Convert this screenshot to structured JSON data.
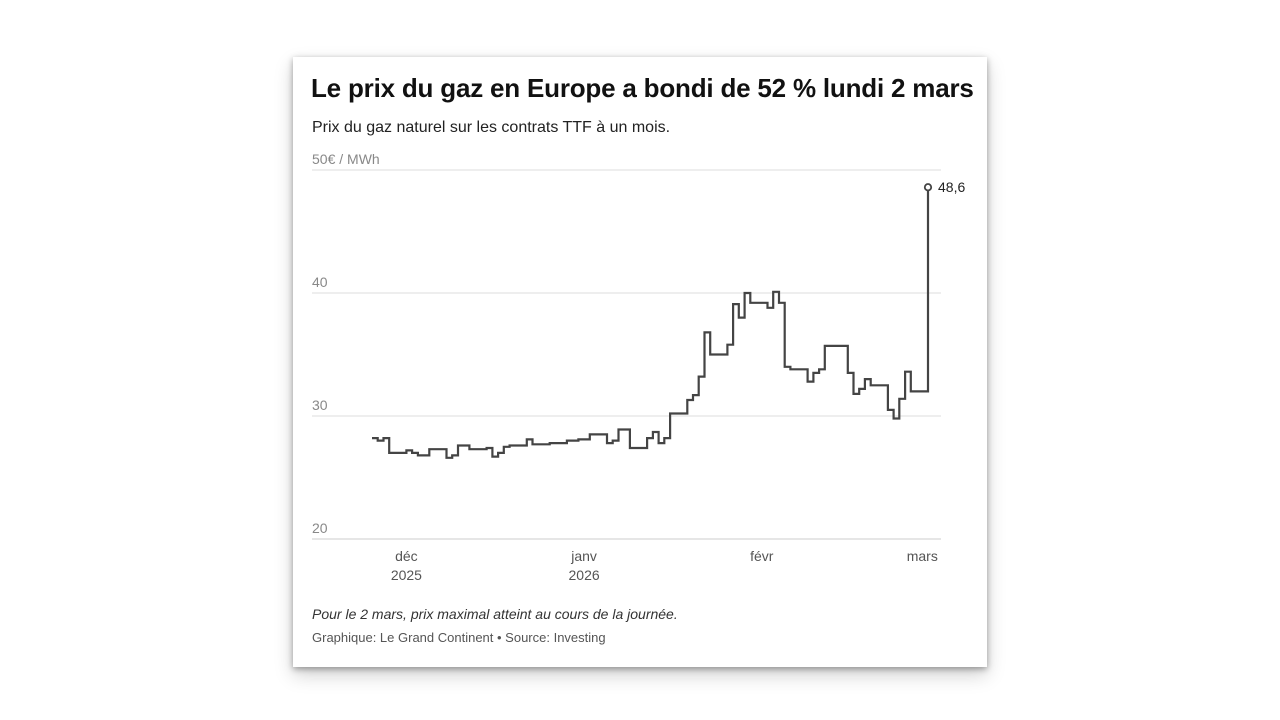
{
  "header": {
    "title": "Le prix du gaz en Europe a bondi de 52 % lundi 2 mars",
    "subtitle": "Prix du gaz naturel sur les contrats TTF à un mois."
  },
  "footer": {
    "note": "Pour le 2 mars, prix maximal atteint au cours de la journée.",
    "credit": "Graphique: Le Grand Continent • Source: Investing"
  },
  "colors": {
    "line": "#444444",
    "grid": "#dddddd",
    "axis_text": "#888888",
    "tick_text": "#555555"
  },
  "chart_data": {
    "type": "line",
    "title": "Le prix du gaz en Europe a bondi de 52 % lundi 2 mars",
    "subtitle": "Prix du gaz naturel sur les contrats TTF à un mois.",
    "ylabel": "€ / MWh",
    "ylim": [
      20,
      50
    ],
    "yticks": [
      {
        "value": 50,
        "label": "50€ / MWh"
      },
      {
        "value": 40,
        "label": "40"
      },
      {
        "value": 30,
        "label": "30"
      },
      {
        "value": 20,
        "label": "20"
      }
    ],
    "xlim": [
      "2025-11-25",
      "2026-03-02"
    ],
    "xticks": [
      {
        "date": "2025-12-01",
        "label": "déc",
        "sublabel": "2025"
      },
      {
        "date": "2026-01-01",
        "label": "janv",
        "sublabel": "2026"
      },
      {
        "date": "2026-02-01",
        "label": "févr",
        "sublabel": ""
      },
      {
        "date": "2026-03-01",
        "label": "mars",
        "sublabel": ""
      }
    ],
    "grid": true,
    "step": true,
    "series": [
      {
        "name": "",
        "points": [
          [
            "2025-11-25",
            28.2
          ],
          [
            "2025-11-26",
            28.0
          ],
          [
            "2025-11-27",
            28.2
          ],
          [
            "2025-11-28",
            27.0
          ],
          [
            "2025-12-01",
            27.2
          ],
          [
            "2025-12-02",
            27.0
          ],
          [
            "2025-12-03",
            26.8
          ],
          [
            "2025-12-04",
            26.8
          ],
          [
            "2025-12-05",
            27.3
          ],
          [
            "2025-12-08",
            26.6
          ],
          [
            "2025-12-09",
            26.8
          ],
          [
            "2025-12-10",
            27.6
          ],
          [
            "2025-12-11",
            27.6
          ],
          [
            "2025-12-12",
            27.3
          ],
          [
            "2025-12-15",
            27.4
          ],
          [
            "2025-12-16",
            26.7
          ],
          [
            "2025-12-17",
            27.0
          ],
          [
            "2025-12-18",
            27.5
          ],
          [
            "2025-12-19",
            27.6
          ],
          [
            "2025-12-22",
            28.1
          ],
          [
            "2025-12-23",
            27.7
          ],
          [
            "2025-12-24",
            27.7
          ],
          [
            "2025-12-26",
            27.8
          ],
          [
            "2025-12-29",
            28.0
          ],
          [
            "2025-12-30",
            28.0
          ],
          [
            "2025-12-31",
            28.1
          ],
          [
            "2026-01-02",
            28.5
          ],
          [
            "2026-01-05",
            27.8
          ],
          [
            "2026-01-06",
            28.0
          ],
          [
            "2026-01-07",
            28.9
          ],
          [
            "2026-01-08",
            28.9
          ],
          [
            "2026-01-09",
            27.4
          ],
          [
            "2026-01-12",
            28.2
          ],
          [
            "2026-01-13",
            28.7
          ],
          [
            "2026-01-14",
            27.8
          ],
          [
            "2026-01-15",
            28.2
          ],
          [
            "2026-01-16",
            30.2
          ],
          [
            "2026-01-19",
            31.3
          ],
          [
            "2026-01-20",
            31.7
          ],
          [
            "2026-01-21",
            33.2
          ],
          [
            "2026-01-22",
            36.8
          ],
          [
            "2026-01-23",
            35.0
          ],
          [
            "2026-01-26",
            35.8
          ],
          [
            "2026-01-27",
            39.1
          ],
          [
            "2026-01-28",
            38.0
          ],
          [
            "2026-01-29",
            40.0
          ],
          [
            "2026-01-30",
            39.2
          ],
          [
            "2026-02-02",
            38.8
          ],
          [
            "2026-02-03",
            40.1
          ],
          [
            "2026-02-04",
            39.2
          ],
          [
            "2026-02-05",
            34.0
          ],
          [
            "2026-02-06",
            33.8
          ],
          [
            "2026-02-09",
            32.8
          ],
          [
            "2026-02-10",
            33.5
          ],
          [
            "2026-02-11",
            33.8
          ],
          [
            "2026-02-12",
            35.7
          ],
          [
            "2026-02-13",
            35.7
          ],
          [
            "2026-02-16",
            33.5
          ],
          [
            "2026-02-17",
            31.8
          ],
          [
            "2026-02-18",
            32.2
          ],
          [
            "2026-02-19",
            33.0
          ],
          [
            "2026-02-20",
            32.5
          ],
          [
            "2026-02-23",
            30.5
          ],
          [
            "2026-02-24",
            29.8
          ],
          [
            "2026-02-25",
            31.4
          ],
          [
            "2026-02-26",
            33.6
          ],
          [
            "2026-02-27",
            32.0
          ],
          [
            "2026-03-02",
            48.6
          ]
        ]
      }
    ],
    "annotations": [
      {
        "date": "2026-03-02",
        "value": 48.6,
        "label": "48,6",
        "marker": "open-circle"
      }
    ]
  }
}
